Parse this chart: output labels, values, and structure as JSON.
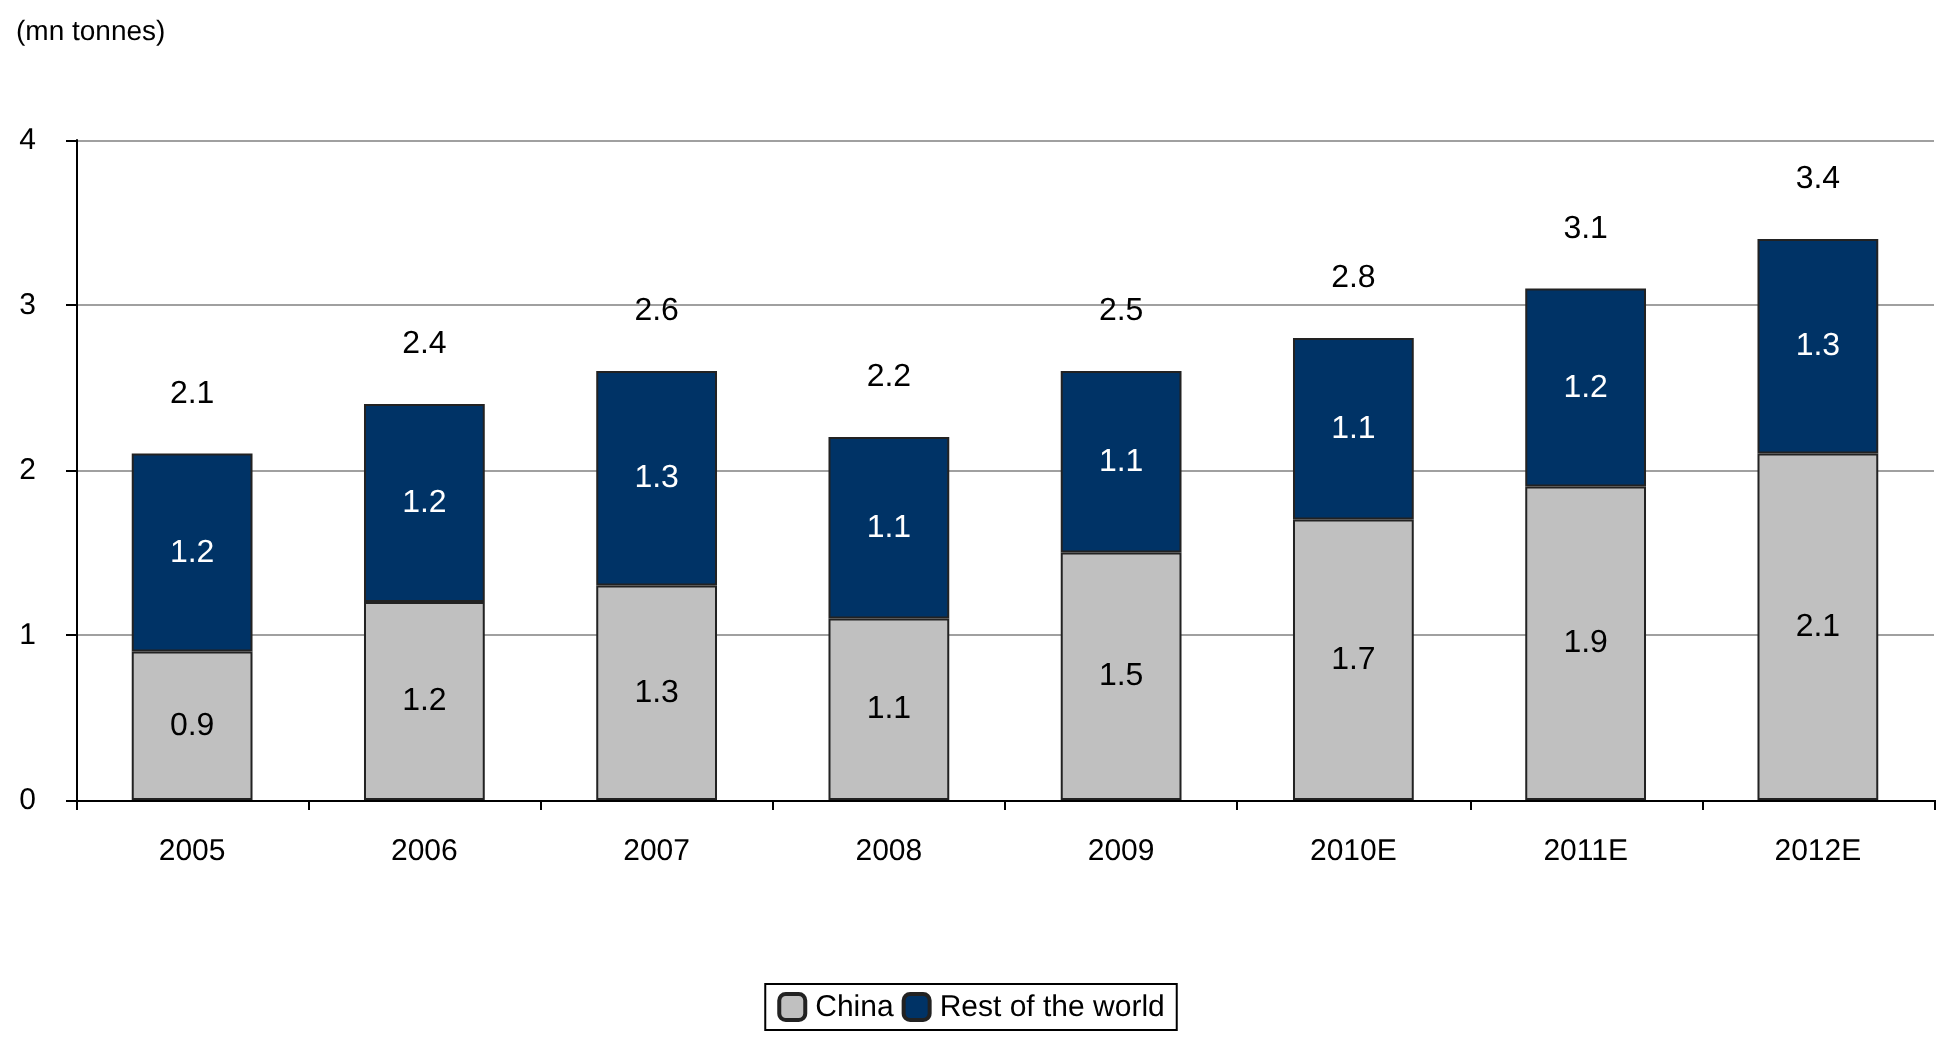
{
  "chart_data": {
    "type": "bar",
    "ylabel": "(mn tonnes)",
    "categories": [
      "2005",
      "2006",
      "2007",
      "2008",
      "2009",
      "2010E",
      "2011E",
      "2012E"
    ],
    "series": [
      {
        "name": "China",
        "color": "#c0c0c0",
        "values": [
          0.9,
          1.2,
          1.3,
          1.1,
          1.5,
          1.7,
          1.9,
          2.1
        ]
      },
      {
        "name": "Rest of the world",
        "color": "#003366",
        "values": [
          1.2,
          1.2,
          1.3,
          1.1,
          1.1,
          1.1,
          1.2,
          1.3
        ]
      }
    ],
    "stacked": true,
    "data_labels": true,
    "totals": [
      "2.1",
      "2.4",
      "2.6",
      "2.2",
      "2.5",
      "2.8",
      "3.1",
      "3.4"
    ],
    "ylim": [
      0,
      4
    ],
    "yticks": [
      0,
      1,
      2,
      3,
      4
    ],
    "grid": "y",
    "legend": "bottom"
  }
}
